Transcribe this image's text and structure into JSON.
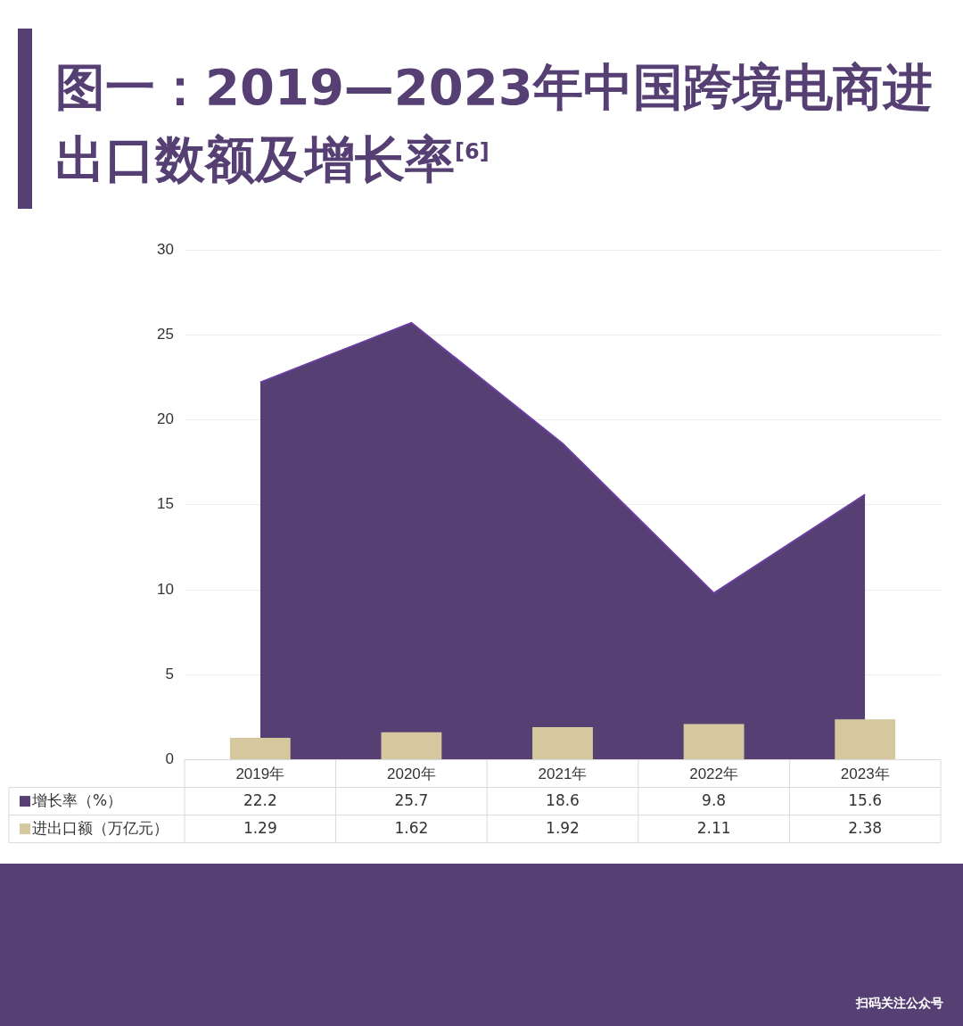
{
  "chart_data": {
    "type": "bar",
    "title": "图一：2019—2023年中国跨境电商进出口数额及增长率$^{[6]}$",
    "categories": [
      "2019年",
      "2020年",
      "2021年",
      "2022年",
      "2023年"
    ],
    "series": [
      {
        "name": "增长率（%）",
        "type": "area",
        "color": "#553f73",
        "values": [
          22.2,
          25.7,
          18.6,
          9.8,
          15.6
        ]
      },
      {
        "name": "进出口额（万亿元）",
        "color": "#d5c89f",
        "values": [
          1.29,
          1.62,
          1.92,
          2.11,
          2.38
        ]
      }
    ],
    "ylim": [
      0,
      30
    ],
    "yticks": [
      0,
      5,
      10,
      15,
      20,
      25,
      30
    ],
    "grid": "y",
    "legend": "bottom",
    "data_labels": true,
    "annotations": [
      "扫码关注公众号"
    ]
  }
}
